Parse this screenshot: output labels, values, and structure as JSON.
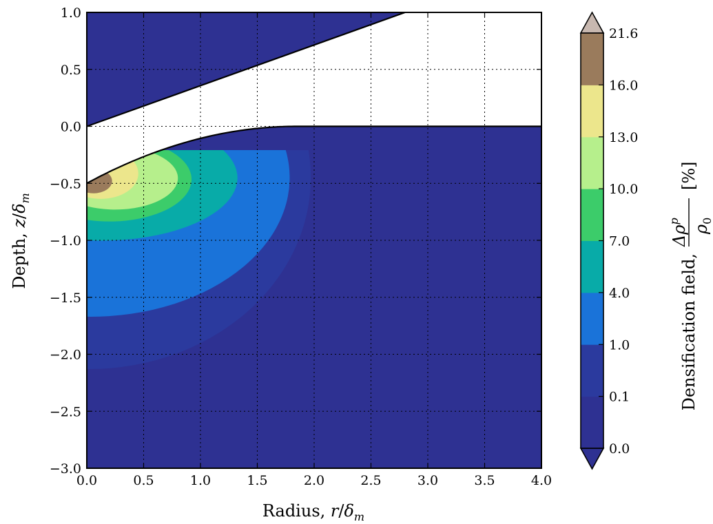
{
  "chart_data": {
    "type": "heatmap",
    "subtype": "filled-contour",
    "title": "",
    "xlabel": "Radius, r/δm",
    "ylabel": "Depth, z/δm",
    "xlim": [
      0.0,
      4.0
    ],
    "ylim": [
      -3.0,
      1.0
    ],
    "grid": true,
    "x_ticks": [
      "0.0",
      "0.5",
      "1.0",
      "1.5",
      "2.0",
      "2.5",
      "3.0",
      "3.5",
      "4.0"
    ],
    "y_ticks": [
      "1.0",
      "0.5",
      "0.0",
      "−0.5",
      "−1.0",
      "−1.5",
      "−2.0",
      "−2.5",
      "−3.0"
    ],
    "colorbar": {
      "label_prefix": "Densification field,",
      "label_numerator": "Δρ",
      "label_numerator_sup": "p",
      "label_denominator": "ρ",
      "label_denominator_sub": "0",
      "label_unit": "[%]",
      "levels": [
        0.0,
        0.1,
        1.0,
        4.0,
        7.0,
        10.0,
        13.0,
        16.0,
        21.6
      ],
      "tick_labels": [
        "0.0",
        "0.1",
        "1.0",
        "4.0",
        "7.0",
        "10.0",
        "13.0",
        "16.0",
        "21.6"
      ],
      "colors": [
        "#2e3192",
        "#2b3a9e",
        "#1a73d9",
        "#08aba8",
        "#3ccc6a",
        "#b6ef8c",
        "#ece68c",
        "#9a7b5c"
      ],
      "under_color": "#2e3192",
      "over_color": "#c8b8b0",
      "extend": "both"
    },
    "indenter": {
      "description": "conical indenter line from (0,0) to (2.8,1.0)",
      "line": [
        [
          0.0,
          0.0
        ],
        [
          2.8,
          1.0
        ]
      ]
    },
    "surface_profile": [
      [
        0.0,
        -0.5
      ],
      [
        0.5,
        -0.36
      ],
      [
        1.0,
        -0.22
      ],
      [
        1.5,
        -0.08
      ],
      [
        1.8,
        0.0
      ],
      [
        4.0,
        0.0
      ]
    ],
    "contour_regions": [
      {
        "level_min": 13.0,
        "extent_r": 0.25,
        "extent_depth": -0.62
      },
      {
        "level_min": 10.0,
        "extent_r": 0.5,
        "extent_depth": -0.7
      },
      {
        "level_min": 7.0,
        "extent_r": 0.72,
        "extent_depth": -0.82
      },
      {
        "level_min": 4.0,
        "extent_r": 1.2,
        "extent_depth": -1.0
      },
      {
        "level_min": 1.0,
        "extent_r": 1.75,
        "extent_depth": -1.67
      },
      {
        "level_min": 0.1,
        "extent_r": 1.95,
        "extent_depth": -2.13
      }
    ]
  }
}
